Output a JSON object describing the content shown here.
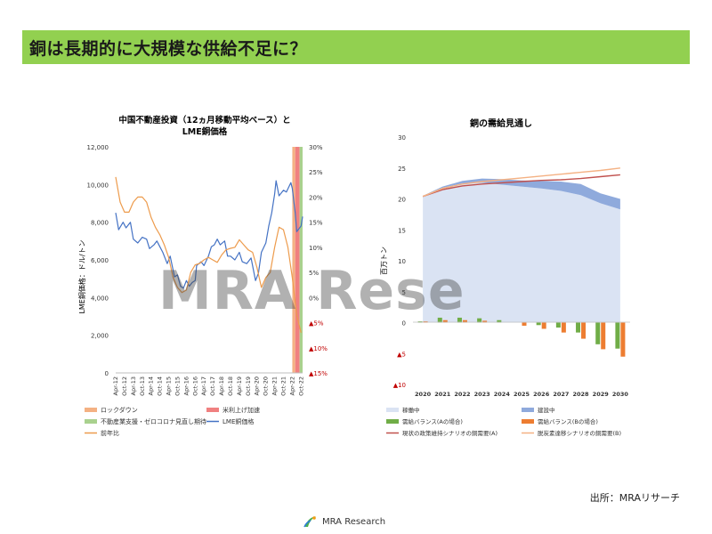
{
  "slide": {
    "title": "銅は長期的に大規模な供給不足に？",
    "source": "出所：MRAリサーチ",
    "logo_text": "MRA Research",
    "watermark": "MRA Rese"
  },
  "colors": {
    "title_bar": "#92d050",
    "lme": "#4472c4",
    "yoy": "#ed9b4c",
    "lockdown": "#f4b183",
    "rate_hike": "#f08080",
    "stimulus": "#a9d18e",
    "operating": "#dae3f3",
    "construction": "#8faadc",
    "balance_a": "#70ad47",
    "balance_b": "#ed7d31",
    "demand_a": "#c0504d",
    "demand_b": "#f4b183",
    "negative_tick": "#c00000"
  },
  "chart_data": [
    {
      "type": "line",
      "title": "中国不動産投資（12ヵ月移動平均ベース）と",
      "subtitle": "LME銅価格",
      "ylabel": "LME銅価格：ドル/トン",
      "ylim": [
        0,
        12000
      ],
      "y_ticks": [
        "0",
        "2,000",
        "4,000",
        "6,000",
        "8,000",
        "10,000",
        "12,000"
      ],
      "y2lim": [
        -15,
        30
      ],
      "y2_ticks": [
        {
          "label": "▲15%",
          "negative": true
        },
        {
          "label": "▲10%",
          "negative": true
        },
        {
          "label": "▲5%",
          "negative": true
        },
        {
          "label": "0%",
          "negative": false
        },
        {
          "label": "5%",
          "negative": false
        },
        {
          "label": "10%",
          "negative": false
        },
        {
          "label": "15%",
          "negative": false
        },
        {
          "label": "20%",
          "negative": false
        },
        {
          "label": "25%",
          "negative": false
        },
        {
          "label": "30%",
          "negative": false
        }
      ],
      "categories": [
        "Apr-12",
        "Oct-12",
        "Apr-13",
        "Oct-13",
        "Apr-14",
        "Oct-14",
        "Apr-15",
        "Oct-15",
        "Apr-16",
        "Oct-16",
        "Apr-17",
        "Oct-17",
        "Apr-18",
        "Oct-18",
        "Apr-19",
        "Oct-19",
        "Apr-20",
        "Oct-20",
        "Apr-21",
        "Oct-21",
        "Apr-22",
        "Oct-22"
      ],
      "shaded_periods": [
        {
          "name": "ロックダウン",
          "from": "Apr-22",
          "to": "Jun-22"
        },
        {
          "name": "米利上げ加速",
          "from": "Jun-22",
          "to": "Sep-22"
        },
        {
          "name": "不動産業支援・ゼロコロナ見直し期待",
          "from": "Sep-22",
          "to": "Nov-22"
        }
      ],
      "series": [
        {
          "name": "LME銅価格",
          "axis": "left",
          "points": [
            [
              "Apr-12",
              8500
            ],
            [
              "Jun-12",
              7600
            ],
            [
              "Sep-12",
              8000
            ],
            [
              "Nov-12",
              7700
            ],
            [
              "Feb-13",
              8000
            ],
            [
              "Apr-13",
              7100
            ],
            [
              "Jul-13",
              6900
            ],
            [
              "Oct-13",
              7200
            ],
            [
              "Jan-14",
              7100
            ],
            [
              "Mar-14",
              6600
            ],
            [
              "Jun-14",
              6800
            ],
            [
              "Aug-14",
              7000
            ],
            [
              "Oct-14",
              6700
            ],
            [
              "Dec-14",
              6400
            ],
            [
              "Mar-15",
              5800
            ],
            [
              "May-15",
              6200
            ],
            [
              "Aug-15",
              5100
            ],
            [
              "Oct-15",
              5200
            ],
            [
              "Dec-15",
              4600
            ],
            [
              "Feb-16",
              4500
            ],
            [
              "Apr-16",
              4900
            ],
            [
              "Jun-16",
              4600
            ],
            [
              "Aug-16",
              4800
            ],
            [
              "Oct-16",
              4900
            ],
            [
              "Nov-16",
              5700
            ],
            [
              "Feb-17",
              5900
            ],
            [
              "Apr-17",
              5700
            ],
            [
              "Jul-17",
              6200
            ],
            [
              "Sep-17",
              6700
            ],
            [
              "Nov-17",
              6800
            ],
            [
              "Jan-18",
              7100
            ],
            [
              "Mar-18",
              6800
            ],
            [
              "Jun-18",
              7000
            ],
            [
              "Aug-18",
              6200
            ],
            [
              "Oct-18",
              6200
            ],
            [
              "Jan-19",
              6000
            ],
            [
              "Apr-19",
              6400
            ],
            [
              "Jun-19",
              5900
            ],
            [
              "Sep-19",
              5800
            ],
            [
              "Dec-19",
              6100
            ],
            [
              "Mar-20",
              4900
            ],
            [
              "May-20",
              5300
            ],
            [
              "Jul-20",
              6400
            ],
            [
              "Oct-20",
              6900
            ],
            [
              "Dec-20",
              7800
            ],
            [
              "Feb-21",
              8500
            ],
            [
              "Apr-21",
              9500
            ],
            [
              "May-21",
              10200
            ],
            [
              "Jul-21",
              9400
            ],
            [
              "Oct-21",
              9700
            ],
            [
              "Dec-21",
              9600
            ],
            [
              "Mar-22",
              10100
            ],
            [
              "Apr-22",
              9800
            ],
            [
              "Jun-22",
              8500
            ],
            [
              "Jul-22",
              7500
            ],
            [
              "Sep-22",
              7700
            ],
            [
              "Oct-22",
              7800
            ],
            [
              "Nov-22",
              8300
            ]
          ]
        },
        {
          "name": "前年比",
          "axis": "right",
          "points": [
            [
              "Apr-12",
              24
            ],
            [
              "Jul-12",
              19
            ],
            [
              "Oct-12",
              17
            ],
            [
              "Jan-13",
              17
            ],
            [
              "Apr-13",
              19
            ],
            [
              "Jul-13",
              20
            ],
            [
              "Oct-13",
              20
            ],
            [
              "Jan-14",
              19
            ],
            [
              "Apr-14",
              16
            ],
            [
              "Jul-14",
              14
            ],
            [
              "Oct-14",
              12.5
            ],
            [
              "Jan-15",
              10.5
            ],
            [
              "Apr-15",
              8
            ],
            [
              "Jul-15",
              4
            ],
            [
              "Oct-15",
              2
            ],
            [
              "Jan-16",
              1
            ],
            [
              "Apr-16",
              1.5
            ],
            [
              "Jul-16",
              5
            ],
            [
              "Oct-16",
              6.5
            ],
            [
              "Jan-17",
              6.8
            ],
            [
              "Apr-17",
              7.5
            ],
            [
              "Jul-17",
              8
            ],
            [
              "Oct-17",
              7.5
            ],
            [
              "Jan-18",
              7
            ],
            [
              "Apr-18",
              8.5
            ],
            [
              "Jul-18",
              9.5
            ],
            [
              "Oct-18",
              9.8
            ],
            [
              "Jan-19",
              10
            ],
            [
              "Apr-19",
              11.5
            ],
            [
              "Jul-19",
              10.5
            ],
            [
              "Oct-19",
              9.5
            ],
            [
              "Jan-20",
              9
            ],
            [
              "Apr-20",
              6
            ],
            [
              "Jul-20",
              2
            ],
            [
              "Oct-20",
              4
            ],
            [
              "Jan-21",
              5
            ],
            [
              "Apr-21",
              10
            ],
            [
              "Jul-21",
              14
            ],
            [
              "Oct-21",
              13.5
            ],
            [
              "Jan-22",
              10
            ],
            [
              "Apr-22",
              4
            ],
            [
              "Jul-22",
              -3.5
            ],
            [
              "Oct-22",
              -7
            ]
          ]
        }
      ],
      "legend": [
        {
          "name": "ロックダウン",
          "kind": "fill",
          "color_key": "lockdown"
        },
        {
          "name": "米利上げ加速",
          "kind": "fill",
          "color_key": "rate_hike"
        },
        {
          "name": "不動産業支援・ゼロコロナ見直し期待",
          "kind": "fill",
          "color_key": "stimulus"
        },
        {
          "name": "LME銅価格",
          "kind": "line",
          "color_key": "lme"
        },
        {
          "name": "前年比",
          "kind": "line",
          "color_key": "yoy"
        }
      ]
    },
    {
      "type": "area",
      "title": "銅の需給見通し",
      "ylabel": "百万トン",
      "ylim": [
        -10,
        30
      ],
      "y_ticks": [
        {
          "label": "▲10",
          "negative": true
        },
        {
          "label": "▲5",
          "negative": true
        },
        {
          "label": "0",
          "negative": false
        },
        {
          "label": "5",
          "negative": false
        },
        {
          "label": "10",
          "negative": false
        },
        {
          "label": "15",
          "negative": false
        },
        {
          "label": "20",
          "negative": false
        },
        {
          "label": "25",
          "negative": false
        },
        {
          "label": "30",
          "negative": false
        }
      ],
      "categories": [
        "2020",
        "2021",
        "2022",
        "2023",
        "2024",
        "2025",
        "2026",
        "2027",
        "2028",
        "2029",
        "2030"
      ],
      "series": [
        {
          "name": "稼働中",
          "kind": "area",
          "values": [
            20.5,
            21.8,
            22.5,
            22.6,
            22.3,
            22.0,
            21.7,
            21.3,
            20.6,
            19.3,
            18.3
          ]
        },
        {
          "name": "建設中",
          "kind": "area-stack",
          "values": [
            0,
            0.2,
            0.4,
            0.7,
            0.9,
            1.0,
            1.2,
            1.5,
            1.8,
            1.6,
            1.7
          ]
        },
        {
          "name": "需給バランス(Aの場合)",
          "kind": "bar",
          "values": [
            0.2,
            0.8,
            0.8,
            0.7,
            0.4,
            0.0,
            -0.4,
            -0.8,
            -1.6,
            -3.5,
            -4.2
          ]
        },
        {
          "name": "需給バランス(Bの場合)",
          "kind": "bar",
          "values": [
            0.2,
            0.4,
            0.4,
            0.3,
            0.0,
            -0.5,
            -1.0,
            -1.6,
            -2.6,
            -4.3,
            -5.5
          ]
        },
        {
          "name": "現状の政策維持シナリオの銅需要(A)",
          "kind": "line",
          "values": [
            20.4,
            21.5,
            22.1,
            22.4,
            22.6,
            22.8,
            23.0,
            23.1,
            23.3,
            23.6,
            23.9
          ]
        },
        {
          "name": "脱炭素達移シナリオの銅需要(B)",
          "kind": "line",
          "values": [
            20.4,
            21.7,
            22.4,
            22.8,
            23.1,
            23.4,
            23.7,
            24.0,
            24.3,
            24.6,
            25.0
          ]
        }
      ],
      "legend": [
        {
          "name": "稼働中",
          "kind": "fill",
          "color_key": "operating"
        },
        {
          "name": "建設中",
          "kind": "fill",
          "color_key": "construction"
        },
        {
          "name": "需給バランス(Aの場合)",
          "kind": "fill",
          "color_key": "balance_a"
        },
        {
          "name": "需給バランス(Bの場合)",
          "kind": "fill",
          "color_key": "balance_b"
        },
        {
          "name": "現状の政策維持シナリオの銅需要(A)",
          "kind": "line",
          "color_key": "demand_a"
        },
        {
          "name": "脱炭素達移シナリオの銅需要(B)",
          "kind": "line",
          "color_key": "demand_b"
        }
      ]
    }
  ]
}
